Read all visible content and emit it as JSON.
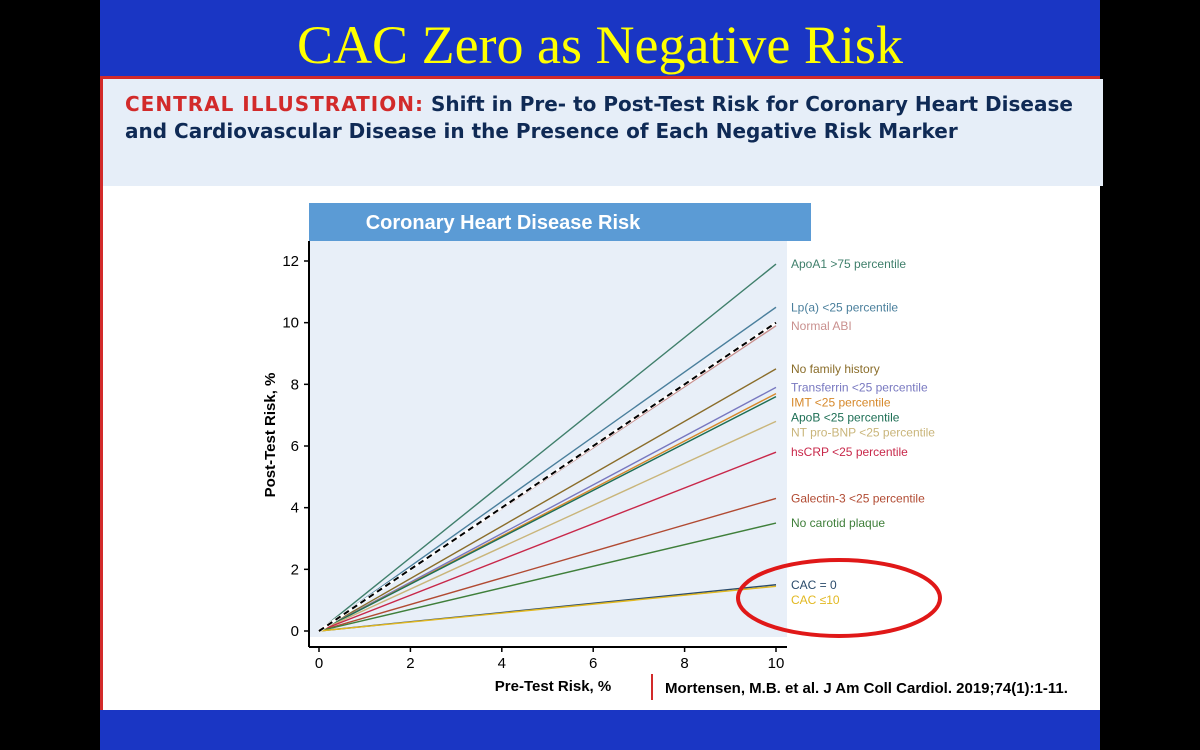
{
  "slide": {
    "title": "CAC Zero as Negative Risk",
    "header_lead": "CENTRAL ILLUSTRATION:",
    "header_rest": "Shift in Pre- to Post-Test Risk for Coronary Heart Disease and Cardiovascular Disease in the Presence of Each Negative Risk Marker",
    "citation": "Mortensen, M.B. et al. J Am Coll Cardiol. 2019;74(1):1-11.",
    "highlight_color": "#e01818"
  },
  "chart_data": {
    "type": "line",
    "title": "Coronary Heart Disease Risk",
    "xlabel": "Pre-Test Risk, %",
    "ylabel": "Post-Test Risk, %",
    "xlim": [
      0,
      10
    ],
    "ylim": [
      0,
      12
    ],
    "xticks": [
      "0",
      "2",
      "4",
      "6",
      "8",
      "10"
    ],
    "yticks": [
      "0",
      "2",
      "4",
      "6",
      "8",
      "10",
      "12"
    ],
    "grid": false,
    "reference": {
      "x": [
        0,
        10
      ],
      "y": [
        0,
        10
      ],
      "style": "dashed",
      "color": "#000000"
    },
    "series": [
      {
        "name": "ApoA1 >75 percentile",
        "x": [
          0,
          10
        ],
        "y": [
          0,
          11.9
        ],
        "color": "#3f7f6b"
      },
      {
        "name": "Lp(a) <25 percentile",
        "x": [
          0,
          10
        ],
        "y": [
          0,
          10.5
        ],
        "color": "#4a7f9c"
      },
      {
        "name": "Normal ABI",
        "x": [
          0,
          10
        ],
        "y": [
          0,
          9.9
        ],
        "color": "#c9908e"
      },
      {
        "name": "No family history",
        "x": [
          0,
          10
        ],
        "y": [
          0,
          8.5
        ],
        "color": "#8a6d2a"
      },
      {
        "name": "Transferrin <25 percentile",
        "x": [
          0,
          10
        ],
        "y": [
          0,
          7.9
        ],
        "color": "#7878c0"
      },
      {
        "name": "IMT <25 percentile",
        "x": [
          0,
          10
        ],
        "y": [
          0,
          7.7
        ],
        "color": "#d6882a"
      },
      {
        "name": "ApoB <25 percentile",
        "x": [
          0,
          10
        ],
        "y": [
          0,
          7.6
        ],
        "color": "#1e6f55"
      },
      {
        "name": "NT pro-BNP <25 percentile",
        "x": [
          0,
          10
        ],
        "y": [
          0,
          6.8
        ],
        "color": "#c9b57a"
      },
      {
        "name": "hsCRP <25 percentile",
        "x": [
          0,
          10
        ],
        "y": [
          0,
          5.8
        ],
        "color": "#c8284a"
      },
      {
        "name": "Galectin-3 <25 percentile",
        "x": [
          0,
          10
        ],
        "y": [
          0,
          4.3
        ],
        "color": "#b14a32"
      },
      {
        "name": "No carotid plaque",
        "x": [
          0,
          10
        ],
        "y": [
          0,
          3.5
        ],
        "color": "#3f7f3a"
      },
      {
        "name": "CAC = 0",
        "x": [
          0,
          10
        ],
        "y": [
          0,
          1.5
        ],
        "color": "#2a4a6a"
      },
      {
        "name": "CAC ≤10",
        "x": [
          0,
          10
        ],
        "y": [
          0,
          1.45
        ],
        "color": "#e2b820"
      }
    ]
  }
}
